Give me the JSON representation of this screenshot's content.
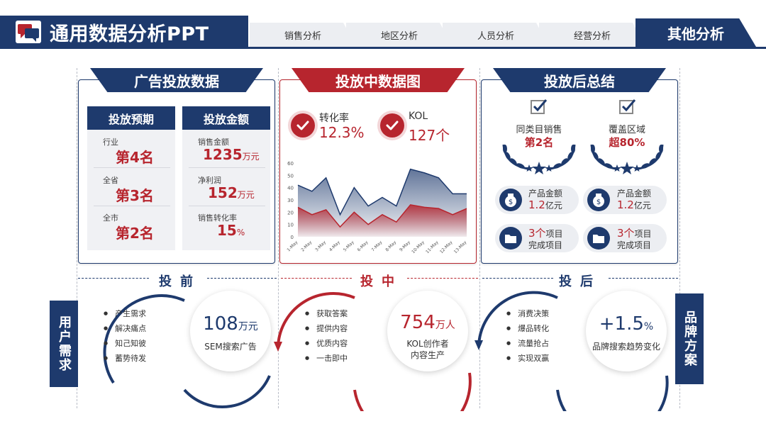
{
  "header": {
    "title": "通用数据分析PPT",
    "icon": "chat-bubbles-icon"
  },
  "tabs": [
    {
      "label": "销售分析",
      "active": false
    },
    {
      "label": "地区分析",
      "active": false
    },
    {
      "label": "人员分析",
      "active": false
    },
    {
      "label": "经营分析",
      "active": false
    },
    {
      "label": "其他分析",
      "active": true
    }
  ],
  "colors": {
    "navy": "#1e3a6d",
    "red": "#b7252e",
    "light": "#eceef2"
  },
  "ad_panel": {
    "title": "广告投放数据",
    "left_head": "投放预期",
    "right_head": "投放金额",
    "left": [
      {
        "label": "行业",
        "value": "第4名"
      },
      {
        "label": "全省",
        "value": "第3名"
      },
      {
        "label": "全市",
        "value": "第2名"
      }
    ],
    "right": [
      {
        "label": "销售金额",
        "value": "1235",
        "unit": "万元"
      },
      {
        "label": "净利润",
        "value": "152",
        "unit": "万元"
      },
      {
        "label": "销售转化率",
        "value": "15",
        "unit": "%"
      }
    ]
  },
  "mid_panel": {
    "title": "投放中数据图",
    "kpis": [
      {
        "label": "转化率",
        "value": "12.3%"
      },
      {
        "label": "KOL",
        "value": "127个"
      }
    ]
  },
  "chart_data": {
    "type": "area",
    "categories": [
      "1-May",
      "2-May",
      "3-May",
      "4-May",
      "5-May",
      "6-May",
      "7-May",
      "8-May",
      "9-May",
      "10-May",
      "11-May",
      "12-May",
      "13-May"
    ],
    "series": [
      {
        "values": [
          42,
          37,
          48,
          18,
          40,
          25,
          32,
          25,
          55,
          52,
          48,
          35,
          35
        ],
        "color": "#1e3a6d"
      },
      {
        "values": [
          24,
          18,
          22,
          8,
          20,
          10,
          18,
          12,
          26,
          24,
          23,
          18,
          23
        ],
        "color": "#b7252e"
      }
    ],
    "ylim": [
      0,
      60
    ],
    "yticks": [
      "0",
      "10",
      "20",
      "30",
      "40",
      "50",
      "60"
    ]
  },
  "after_panel": {
    "title": "投放后总结",
    "awards": [
      {
        "label": "同类目销售",
        "value": "第2名"
      },
      {
        "label": "覆盖区域",
        "value": "超80%"
      }
    ],
    "pills": [
      {
        "icon": "money-bag-icon",
        "line1": "产品金额",
        "value": "1.2",
        "unit": "亿元"
      },
      {
        "icon": "money-bag-icon",
        "line1": "产品金额",
        "value": "1.2",
        "unit": "亿元"
      },
      {
        "icon": "folder-icon",
        "value": "3个",
        "line1": "项目",
        "line2": "完成项目"
      },
      {
        "icon": "folder-icon",
        "value": "3个",
        "line1": "项目",
        "line2": "完成项目"
      }
    ]
  },
  "phases": [
    "投前",
    "投中",
    "投后"
  ],
  "side_left": "用户需求",
  "side_right": "品牌方案",
  "flows": [
    {
      "bullets": [
        "产生需求",
        "解决痛点",
        "知己知彼",
        "蓄势待发"
      ],
      "num": "108",
      "unit": "万元",
      "sub": [
        "SEM搜索广告"
      ]
    },
    {
      "bullets": [
        "获取答案",
        "提供内容",
        "优质内容",
        "一击即中"
      ],
      "num": "754",
      "unit": "万人",
      "sub": [
        "KOL创作者",
        "内容生产"
      ]
    },
    {
      "bullets": [
        "消费决策",
        "爆品转化",
        "流量抢占",
        "实现双赢"
      ],
      "num": "+1.5",
      "unit": "%",
      "sub": [
        "品牌搜索趋势变化"
      ]
    }
  ]
}
